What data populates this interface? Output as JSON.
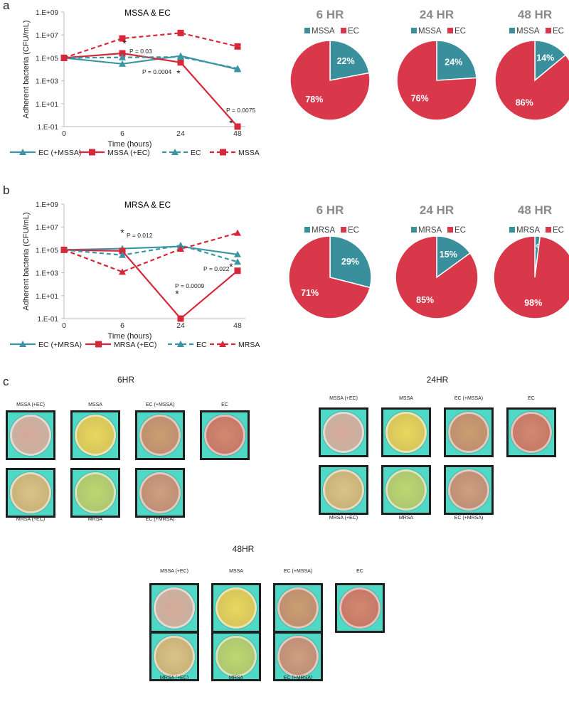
{
  "panels": {
    "a": {
      "letter": "a",
      "line_chart": {
        "title": "MSSA & EC",
        "ylabel": "Adherent bacteria (CFU/mL)",
        "xlabel": "Time (hours)",
        "y_ticks": [
          "1.E+09",
          "1.E+07",
          "1.E+05",
          "1.E+03",
          "1.E+01",
          "1.E-01"
        ],
        "x_ticks": [
          "0",
          "6",
          "24",
          "48"
        ],
        "annotations": [
          "P = 0.03",
          "P = 0.0004",
          "P = 0.0075"
        ],
        "legend": [
          "EC (+MSSA)",
          "MSSA (+EC)",
          "EC",
          "MSSA"
        ]
      },
      "pies": [
        {
          "title": "6 HR",
          "legend": [
            "MSSA",
            "EC"
          ],
          "labels": [
            "22%",
            "78%"
          ]
        },
        {
          "title": "24 HR",
          "legend": [
            "MSSA",
            "EC"
          ],
          "labels": [
            "24%",
            "76%"
          ]
        },
        {
          "title": "48 HR",
          "legend": [
            "MSSA",
            "EC"
          ],
          "labels": [
            "14%",
            "86%"
          ]
        }
      ]
    },
    "b": {
      "letter": "b",
      "line_chart": {
        "title": "MRSA & EC",
        "ylabel": "Adherent bacteria (CFU/mL)",
        "xlabel": "Time (hours)",
        "y_ticks": [
          "1.E+09",
          "1.E+07",
          "1.E+05",
          "1.E+03",
          "1.E+01",
          "1.E-01"
        ],
        "x_ticks": [
          "0",
          "6",
          "24",
          "48"
        ],
        "annotations": [
          "P = 0.012",
          "P = 0.0009",
          "P = 0.022"
        ],
        "legend": [
          "EC (+MRSA)",
          "MRSA (+EC)",
          "EC",
          "MRSA"
        ]
      },
      "pies": [
        {
          "title": "6 HR",
          "legend": [
            "MRSA",
            "EC"
          ],
          "labels": [
            "29%",
            "71%"
          ]
        },
        {
          "title": "24 HR",
          "legend": [
            "MRSA",
            "EC"
          ],
          "labels": [
            "15%",
            "85%"
          ]
        },
        {
          "title": "48 HR",
          "legend": [
            "MRSA",
            "EC"
          ],
          "labels": [
            "2%",
            "98%"
          ]
        }
      ]
    },
    "c": {
      "letter": "c",
      "groups": [
        {
          "title": "6HR",
          "top_labels": [
            "MSSA (+EC)",
            "MSSA",
            "EC (+MSSA)",
            "EC"
          ],
          "bottom_labels": [
            "MRSA (+EC)",
            "MRSA",
            "EC (+MRSA)"
          ]
        },
        {
          "title": "24HR",
          "top_labels": [
            "MSSA (+EC)",
            "MSSA",
            "EC (+MSSA)",
            "EC"
          ],
          "bottom_labels": [
            "MRSA (+EC)",
            "MRSA",
            "EC (+MRSA)"
          ]
        },
        {
          "title": "48HR",
          "top_labels": [
            "MSSA (+EC)",
            "MSSA",
            "EC (+MSSA)",
            "EC"
          ],
          "bottom_labels": [
            "MRSA (+EC)",
            "MRSA",
            "EC (+MRSA)"
          ]
        }
      ]
    }
  },
  "colors": {
    "teal": "#3b95a3",
    "red": "#d6283a",
    "pie_teal": "#3a8f9c",
    "pie_red": "#d9384b",
    "pie_title": "#8a8a8a"
  },
  "chart_data": [
    {
      "type": "line",
      "title": "MSSA & EC",
      "xlabel": "Time (hours)",
      "ylabel": "Adherent bacteria (CFU/mL)",
      "x": [
        0,
        6,
        24,
        48
      ],
      "y_scale": "log",
      "ylim": [
        0.1,
        1000000000
      ],
      "series": [
        {
          "name": "EC (+MSSA)",
          "values": [
            100000,
            30000,
            150000,
            10000
          ]
        },
        {
          "name": "MSSA (+EC)",
          "values": [
            100000,
            250000,
            40000,
            0.1
          ]
        },
        {
          "name": "EC",
          "values": [
            100000,
            110000,
            120000,
            12000
          ]
        },
        {
          "name": "MSSA",
          "values": [
            100000,
            5000000,
            15000000,
            1000000
          ]
        }
      ]
    },
    {
      "type": "pie",
      "title": "6 HR",
      "categories": [
        "MSSA",
        "EC"
      ],
      "values": [
        22,
        78
      ]
    },
    {
      "type": "pie",
      "title": "24 HR",
      "categories": [
        "MSSA",
        "EC"
      ],
      "values": [
        24,
        76
      ]
    },
    {
      "type": "pie",
      "title": "48 HR",
      "categories": [
        "MSSA",
        "EC"
      ],
      "values": [
        14,
        86
      ]
    },
    {
      "type": "line",
      "title": "MRSA & EC",
      "xlabel": "Time (hours)",
      "ylabel": "Adherent bacteria (CFU/mL)",
      "x": [
        0,
        6,
        24,
        48
      ],
      "y_scale": "log",
      "ylim": [
        0.1,
        1000000000
      ],
      "series": [
        {
          "name": "EC (+MRSA)",
          "values": [
            100000,
            130000,
            200000,
            40000
          ]
        },
        {
          "name": "MRSA (+EC)",
          "values": [
            100000,
            80000,
            0.1,
            1500
          ]
        },
        {
          "name": "EC",
          "values": [
            100000,
            35000,
            250000,
            9000
          ]
        },
        {
          "name": "MRSA",
          "values": [
            100000,
            1200,
            120000,
            3000000
          ]
        }
      ]
    },
    {
      "type": "pie",
      "title": "6 HR",
      "categories": [
        "MRSA",
        "EC"
      ],
      "values": [
        29,
        71
      ]
    },
    {
      "type": "pie",
      "title": "24 HR",
      "categories": [
        "MRSA",
        "EC"
      ],
      "values": [
        15,
        85
      ]
    },
    {
      "type": "pie",
      "title": "48 HR",
      "categories": [
        "MRSA",
        "EC"
      ],
      "values": [
        2,
        98
      ]
    }
  ]
}
